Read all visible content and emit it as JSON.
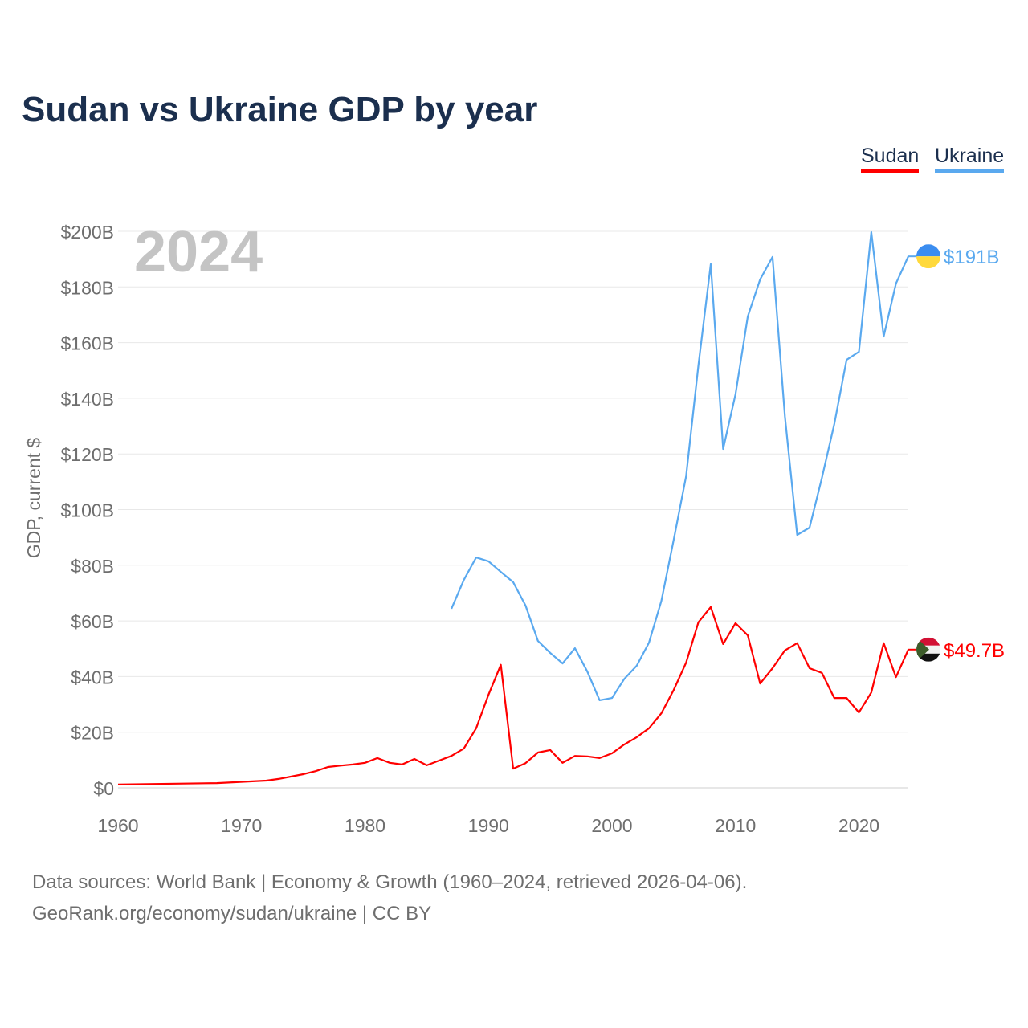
{
  "chart_data": {
    "type": "line",
    "title": "Sudan vs Ukraine GDP by year",
    "ylabel": "GDP, current $",
    "xlabel": "",
    "year_watermark": "2024",
    "xlim": [
      1960,
      2024
    ],
    "ylim": [
      0,
      200
    ],
    "x_ticks": [
      1960,
      1970,
      1980,
      1990,
      2000,
      2010,
      2020
    ],
    "y_ticks": [
      0,
      20,
      40,
      60,
      80,
      100,
      120,
      140,
      160,
      180,
      200
    ],
    "y_tick_labels": [
      "$0",
      "$20B",
      "$40B",
      "$60B",
      "$80B",
      "$100B",
      "$120B",
      "$140B",
      "$160B",
      "$180B",
      "$200B"
    ],
    "grid": true,
    "legend_position": "top-right",
    "series": [
      {
        "name": "Sudan",
        "color": "#ff0000",
        "end_label": "$49.7B",
        "x": [
          1960,
          1968,
          1972,
          1973,
          1975,
          1976,
          1977,
          1978,
          1979,
          1980,
          1981,
          1982,
          1983,
          1984,
          1985,
          1986,
          1987,
          1988,
          1989,
          1990,
          1991,
          1992,
          1993,
          1994,
          1995,
          1996,
          1997,
          1998,
          1999,
          2000,
          2001,
          2002,
          2003,
          2004,
          2005,
          2006,
          2007,
          2008,
          2009,
          2010,
          2011,
          2012,
          2013,
          2014,
          2015,
          2016,
          2017,
          2018,
          2019,
          2020,
          2021,
          2022,
          2023,
          2024
        ],
        "values": [
          1.2,
          1.7,
          2.6,
          3.2,
          4.9,
          6.0,
          7.5,
          8.0,
          8.4,
          9.0,
          10.7,
          9.0,
          8.4,
          10.4,
          8.1,
          9.8,
          11.5,
          14.1,
          21.4,
          33.5,
          44.2,
          6.9,
          8.9,
          12.7,
          13.6,
          9.0,
          11.5,
          11.3,
          10.7,
          12.4,
          15.6,
          18.2,
          21.4,
          26.8,
          35.2,
          45.0,
          59.5,
          65.0,
          51.7,
          59.2,
          54.8,
          37.5,
          43.0,
          49.4,
          52.0,
          43.0,
          41.3,
          32.3,
          32.3,
          27.1,
          34.3,
          52.0,
          39.8,
          49.7
        ]
      },
      {
        "name": "Ukraine",
        "color": "#5aa9ef",
        "end_label": "$191B",
        "x": [
          1987,
          1988,
          1989,
          1990,
          1991,
          1992,
          1993,
          1994,
          1995,
          1996,
          1997,
          1998,
          1999,
          2000,
          2001,
          2002,
          2003,
          2004,
          2005,
          2006,
          2007,
          2008,
          2009,
          2010,
          2011,
          2012,
          2013,
          2014,
          2015,
          2016,
          2017,
          2018,
          2019,
          2020,
          2021,
          2022,
          2023,
          2024
        ],
        "values": [
          64.4,
          74.7,
          82.8,
          81.4,
          77.6,
          73.9,
          65.5,
          52.8,
          48.5,
          44.7,
          50.2,
          41.8,
          31.5,
          32.3,
          39.2,
          43.9,
          52.2,
          67.2,
          89.2,
          112.0,
          151.8,
          188.2,
          121.8,
          141.4,
          169.4,
          182.7,
          190.8,
          133.6,
          90.9,
          93.5,
          111.4,
          130.7,
          153.8,
          156.7,
          199.7,
          162.2,
          181.2,
          191.0
        ]
      }
    ]
  },
  "footer": {
    "line1": "Data sources: World Bank | Economy & Growth (1960–2024, retrieved 2026-04-06).",
    "line2": "GeoRank.org/economy/sudan/ukraine | CC BY"
  }
}
